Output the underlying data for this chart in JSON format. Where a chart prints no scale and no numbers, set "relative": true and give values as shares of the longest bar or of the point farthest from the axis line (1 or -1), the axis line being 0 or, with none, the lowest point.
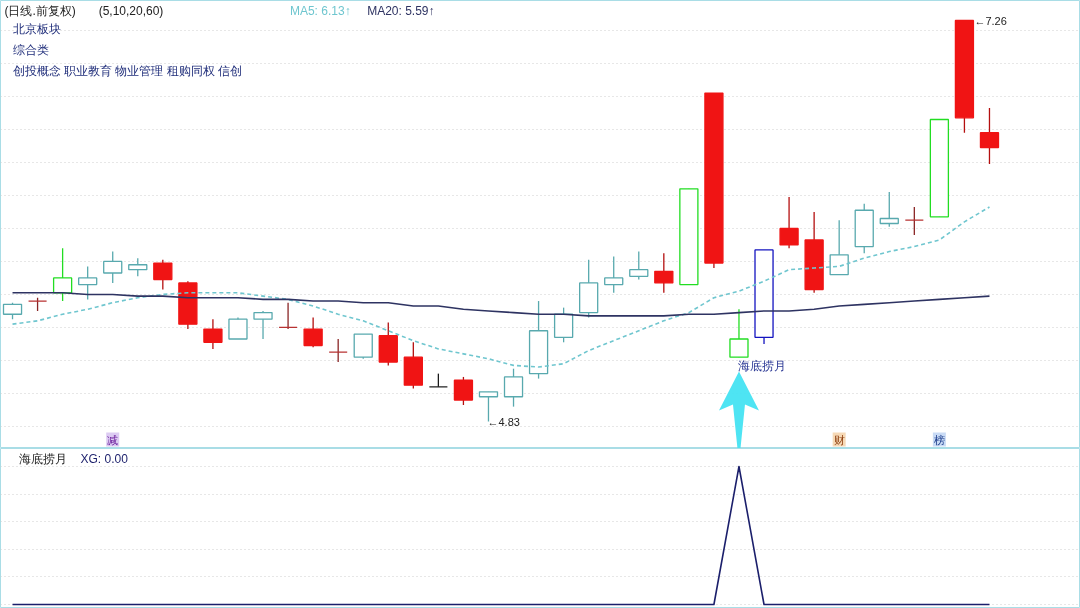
{
  "chart_data": [
    {
      "type": "candlestick",
      "title": "(日线.前复权)",
      "subtitle": "(5,10,20,60)",
      "categories": [
        null,
        null,
        null,
        null,
        null,
        null,
        null,
        null,
        null,
        null,
        null,
        null,
        null,
        null,
        null,
        null,
        null,
        null,
        null,
        null,
        null,
        null,
        null,
        null,
        null,
        null,
        null,
        null,
        null,
        null,
        null,
        null,
        null,
        null,
        null,
        null,
        null,
        null,
        null,
        null
      ],
      "ohlc": [
        [
          5.48,
          5.55,
          5.45,
          5.54
        ],
        [
          5.56,
          5.58,
          5.5,
          5.56
        ],
        [
          5.61,
          5.88,
          5.56,
          5.7
        ],
        [
          5.66,
          5.77,
          5.57,
          5.7
        ],
        [
          5.73,
          5.86,
          5.67,
          5.8
        ],
        [
          5.75,
          5.82,
          5.71,
          5.78
        ],
        [
          5.79,
          5.81,
          5.63,
          5.69
        ],
        [
          5.67,
          5.68,
          5.39,
          5.42
        ],
        [
          5.39,
          5.45,
          5.27,
          5.31
        ],
        [
          5.33,
          5.46,
          5.33,
          5.45
        ],
        [
          5.45,
          5.5,
          5.33,
          5.49
        ],
        [
          5.4,
          5.55,
          5.39,
          5.4
        ],
        [
          5.39,
          5.46,
          5.28,
          5.29
        ],
        [
          5.25,
          5.33,
          5.19,
          5.25
        ],
        [
          5.22,
          5.36,
          5.21,
          5.36
        ],
        [
          5.35,
          5.43,
          5.17,
          5.19
        ],
        [
          5.22,
          5.31,
          5.03,
          5.05
        ],
        [
          5.04,
          5.12,
          5.04,
          5.04
        ],
        [
          5.08,
          5.1,
          4.93,
          4.96
        ],
        [
          4.98,
          5.01,
          4.83,
          5.01
        ],
        [
          4.98,
          5.15,
          4.92,
          5.1
        ],
        [
          5.12,
          5.56,
          5.09,
          5.38
        ],
        [
          5.34,
          5.52,
          5.31,
          5.48
        ],
        [
          5.49,
          5.81,
          5.46,
          5.67
        ],
        [
          5.66,
          5.83,
          5.61,
          5.7
        ],
        [
          5.71,
          5.86,
          5.69,
          5.75
        ],
        [
          5.74,
          5.85,
          5.61,
          5.67
        ],
        [
          5.66,
          6.24,
          5.66,
          6.24
        ],
        [
          6.82,
          6.82,
          5.76,
          5.79
        ],
        [
          5.22,
          5.51,
          5.22,
          5.33
        ],
        [
          5.34,
          5.87,
          5.3,
          5.87
        ],
        [
          6.0,
          6.19,
          5.88,
          5.9
        ],
        [
          5.93,
          6.1,
          5.61,
          5.63
        ],
        [
          5.72,
          6.05,
          5.72,
          5.84
        ],
        [
          5.89,
          6.15,
          5.85,
          6.11
        ],
        [
          6.03,
          6.22,
          6.01,
          6.06
        ],
        [
          6.05,
          6.13,
          5.96,
          6.05
        ],
        [
          6.07,
          6.66,
          6.07,
          6.66
        ],
        [
          7.26,
          7.26,
          6.58,
          6.67
        ],
        [
          6.58,
          6.73,
          6.39,
          6.49
        ]
      ],
      "colors": [
        "#58a9ae",
        "#b83232",
        "#22dd22",
        "#58a9ae",
        "#58a9ae",
        "#58a9ae",
        "#f01414",
        "#f01414",
        "#f01414",
        "#58a9ae",
        "#58a9ae",
        "#b83232",
        "#f01414",
        "#b83232",
        "#58a9ae",
        "#f01414",
        "#f01414",
        "#222222",
        "#f01414",
        "#58a9ae",
        "#58a9ae",
        "#58a9ae",
        "#58a9ae",
        "#58a9ae",
        "#58a9ae",
        "#58a9ae",
        "#f01414",
        "#22dd22",
        "#f01414",
        "#22dd22",
        "#1414c0",
        "#f01414",
        "#f01414",
        "#58a9ae",
        "#58a9ae",
        "#58a9ae",
        "#b83232",
        "#22dd22",
        "#f01414",
        "#f01414"
      ],
      "series": [
        {
          "name": "MA5: 6.13↑",
          "type": "line",
          "color": "#6fc6cf",
          "line_style": "dashed",
          "values": [
            5.42,
            5.44,
            5.48,
            5.51,
            5.55,
            5.58,
            5.6,
            5.61,
            5.61,
            5.61,
            5.59,
            5.57,
            5.53,
            5.48,
            5.44,
            5.38,
            5.32,
            5.27,
            5.24,
            5.21,
            5.17,
            5.16,
            5.18,
            5.26,
            5.32,
            5.38,
            5.44,
            5.49,
            5.58,
            5.62,
            5.68,
            5.75,
            5.76,
            5.77,
            5.82,
            5.86,
            5.89,
            5.93,
            6.04,
            6.13
          ]
        },
        {
          "name": "MA20: 5.59↑",
          "type": "line",
          "color": "#2e3362",
          "line_style": "solid",
          "values": [
            5.61,
            5.61,
            5.61,
            5.6,
            5.6,
            5.59,
            5.59,
            5.58,
            5.58,
            5.58,
            5.57,
            5.57,
            5.56,
            5.56,
            5.55,
            5.55,
            5.53,
            5.53,
            5.51,
            5.5,
            5.49,
            5.48,
            5.48,
            5.47,
            5.47,
            5.47,
            5.47,
            5.48,
            5.48,
            5.49,
            5.5,
            5.5,
            5.51,
            5.53,
            5.54,
            5.55,
            5.56,
            5.57,
            5.58,
            5.59
          ]
        }
      ],
      "annotations": [
        "北京板块",
        "综合类",
        "创投概念 职业教育 物业管理 租购同权 信创",
        "海底捞月",
        "减",
        "财",
        "榜",
        "←4.83",
        "←7.26"
      ],
      "grid": "y",
      "legend": "top",
      "tick_labels": false
    },
    {
      "type": "line",
      "title": "海底捞月",
      "categories": [
        null,
        null,
        null,
        null,
        null,
        null,
        null,
        null,
        null,
        null,
        null,
        null,
        null,
        null,
        null,
        null,
        null,
        null,
        null,
        null,
        null,
        null,
        null,
        null,
        null,
        null,
        null,
        null,
        null,
        null,
        null,
        null,
        null,
        null,
        null,
        null,
        null,
        null,
        null,
        null
      ],
      "series": [
        {
          "name": "XG: 0.00",
          "color": "#1b1f6b",
          "values": [
            0,
            0,
            0,
            0,
            0,
            0,
            0,
            0,
            0,
            0,
            0,
            0,
            0,
            0,
            0,
            0,
            0,
            0,
            0,
            0,
            0,
            0,
            0,
            0,
            0,
            0,
            0,
            0,
            0,
            1,
            0,
            0,
            0,
            0,
            0,
            0,
            0,
            0,
            0,
            0
          ]
        }
      ],
      "relative": true,
      "grid": "y",
      "legend": "top left",
      "tick_labels": false
    }
  ]
}
